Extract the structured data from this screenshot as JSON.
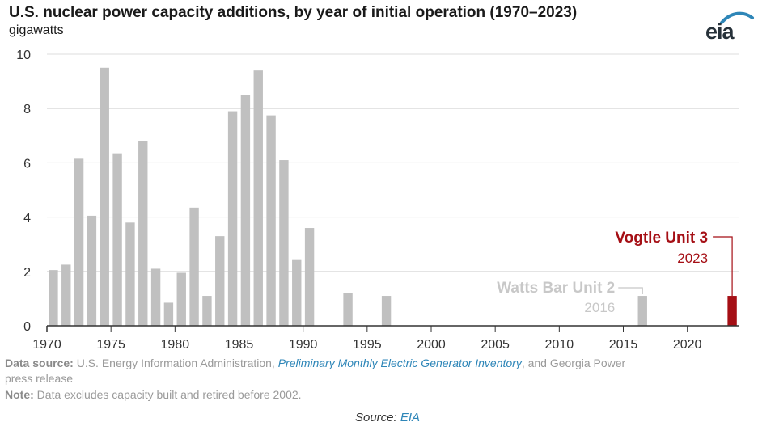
{
  "header": {
    "title": "U.S. nuclear power capacity additions, by year of initial operation (1970–2023)",
    "subtitle": "gigawatts",
    "logo_text": "eia"
  },
  "colors": {
    "bar": "#c0c0c0",
    "highlight": "#a50f15",
    "grid": "#dcdcdc",
    "axis": "#333333"
  },
  "chart_data": {
    "type": "bar",
    "title": "U.S. nuclear power capacity additions, by year of initial operation (1970–2023)",
    "ylabel": "gigawatts",
    "ylim": [
      0,
      10
    ],
    "xlim": [
      1970,
      2024
    ],
    "yticks": [
      0,
      2,
      4,
      6,
      8,
      10
    ],
    "xticks": [
      1970,
      1975,
      1980,
      1985,
      1990,
      1995,
      2000,
      2005,
      2010,
      2015,
      2020
    ],
    "grid": "horizontal",
    "series": [
      {
        "x": [
          1970,
          1971,
          1972,
          1973,
          1974,
          1975,
          1976,
          1977,
          1978,
          1979,
          1980,
          1981,
          1982,
          1983,
          1984,
          1985,
          1986,
          1987,
          1988,
          1989,
          1990,
          1993,
          1996,
          2016
        ],
        "values": [
          2.05,
          2.25,
          6.15,
          4.05,
          9.5,
          6.35,
          3.8,
          6.8,
          2.1,
          0.85,
          1.95,
          4.35,
          1.1,
          3.3,
          7.9,
          8.5,
          9.4,
          7.75,
          6.1,
          2.45,
          3.6,
          1.2,
          1.1,
          1.1
        ],
        "color": "#c0c0c0"
      },
      {
        "x": [
          2023
        ],
        "values": [
          1.1
        ],
        "color": "#a50f15"
      }
    ],
    "annotations": [
      {
        "label": "Watts Bar Unit 2",
        "sublabel": "2016",
        "x": 2016,
        "color": "#c8c8c8"
      },
      {
        "label": "Vogtle Unit 3",
        "sublabel": "2023",
        "x": 2023,
        "color": "#a50f15"
      }
    ]
  },
  "footer": {
    "line1_label": "Data source:",
    "line1_text1": " U.S. Energy Information Administration, ",
    "line1_link": "Preliminary Monthly Electric Generator Inventory",
    "line1_text2": ", and Georgia Power",
    "line2": "press release",
    "note_label": "Note:",
    "note_text": " Data excludes capacity built and retired before 2002.",
    "source_label": "Source: ",
    "source_link": "EIA"
  }
}
